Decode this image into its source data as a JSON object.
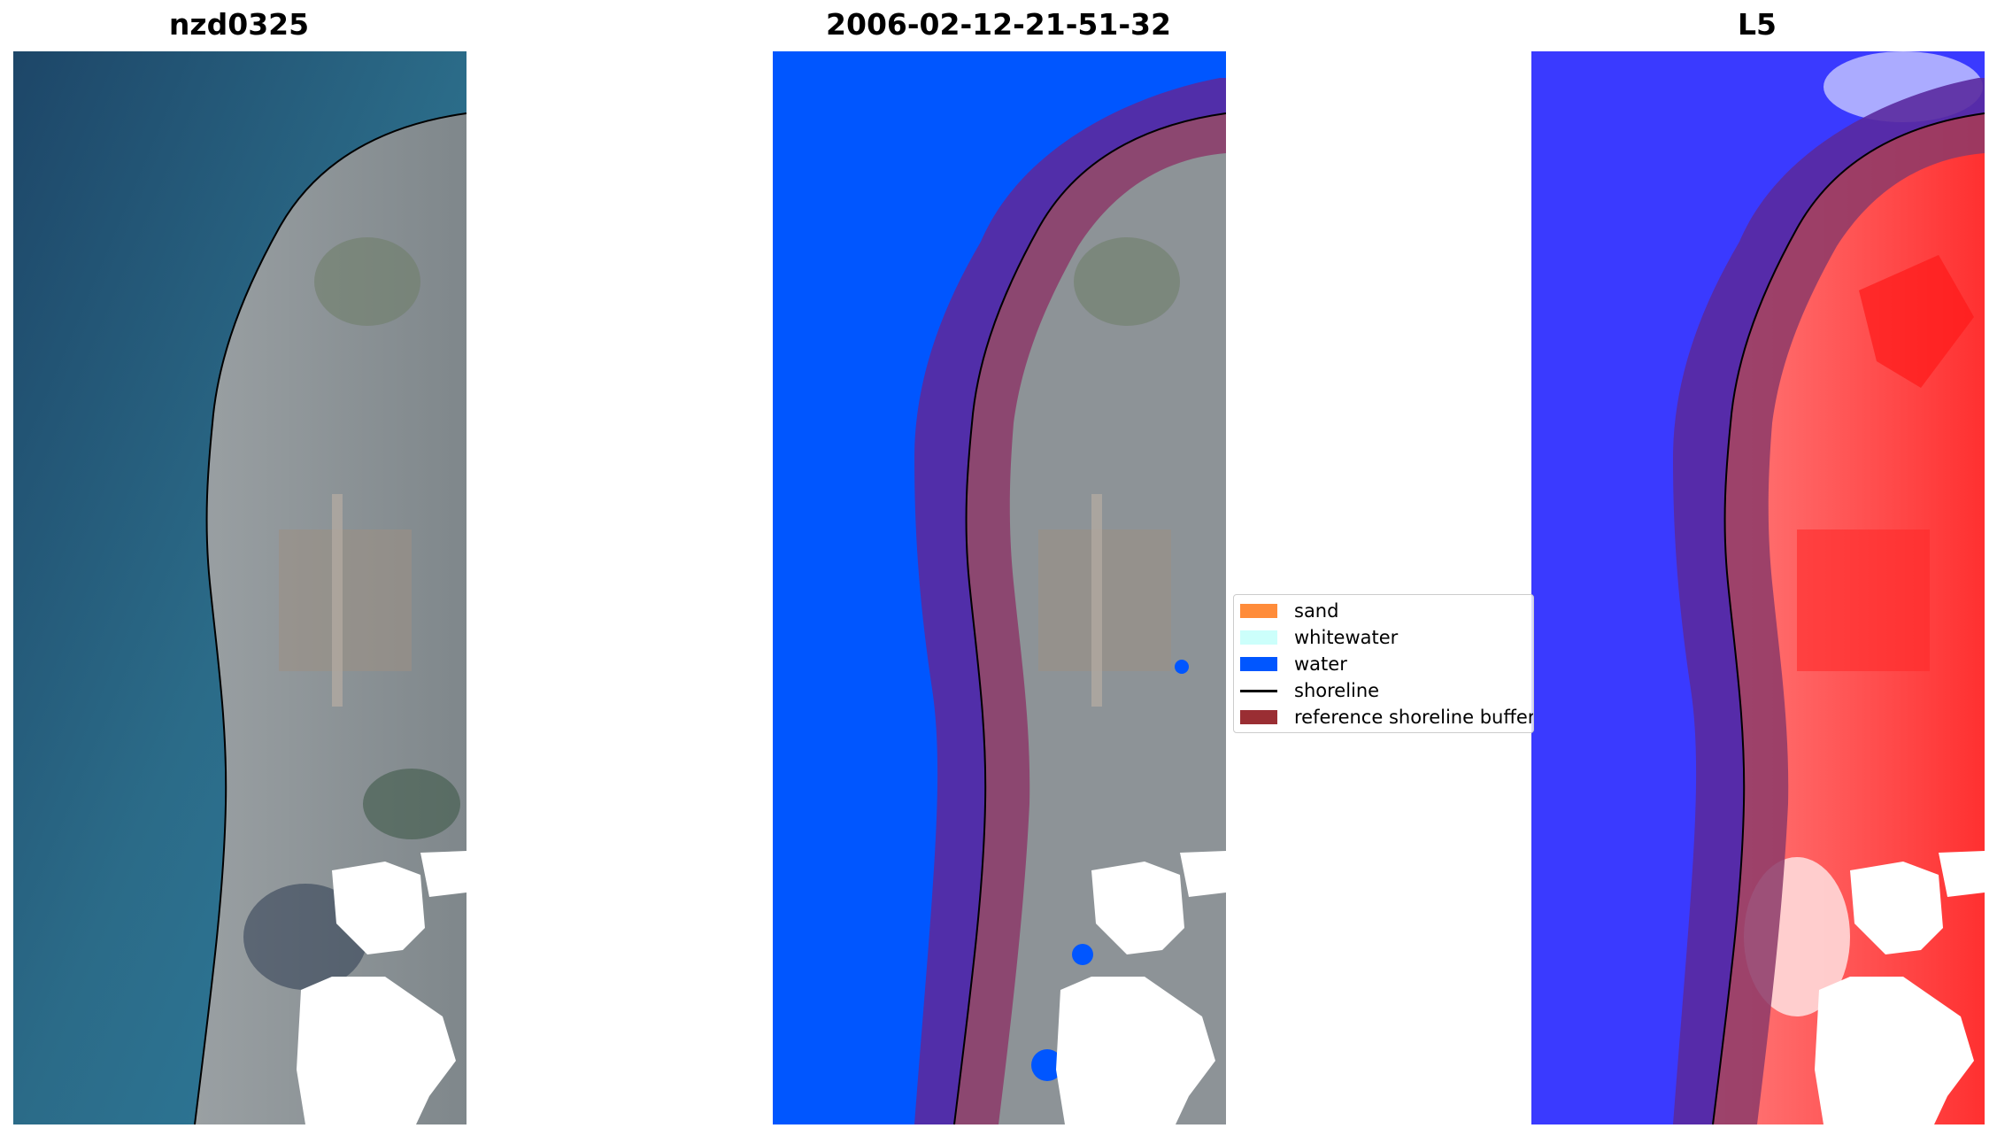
{
  "panels": [
    {
      "title": "nzd0325",
      "view": "rgb"
    },
    {
      "title": "2006-02-12-21-51-32",
      "view": "classified"
    },
    {
      "title": "L5",
      "view": "index"
    }
  ],
  "legend": {
    "items": [
      {
        "label": "sand",
        "kind": "patch",
        "color": "#ff8c3a"
      },
      {
        "label": "whitewater",
        "kind": "patch",
        "color": "#ccfffb"
      },
      {
        "label": "water",
        "kind": "patch",
        "color": "#0056ff"
      },
      {
        "label": "shoreline",
        "kind": "line",
        "color": "#000000"
      },
      {
        "label": "reference shoreline buffer",
        "kind": "patch",
        "color": "#9a2e33"
      }
    ]
  },
  "colors": {
    "sea": "#2f6f8a",
    "land": "#8d9397",
    "water_class": "#0056ff",
    "buffer_sea": "#5a2aa0",
    "buffer_land": "#8c3a68",
    "index_blue": "#3a3aff",
    "index_red": "#ff4040",
    "cloud": "#ffffff"
  }
}
